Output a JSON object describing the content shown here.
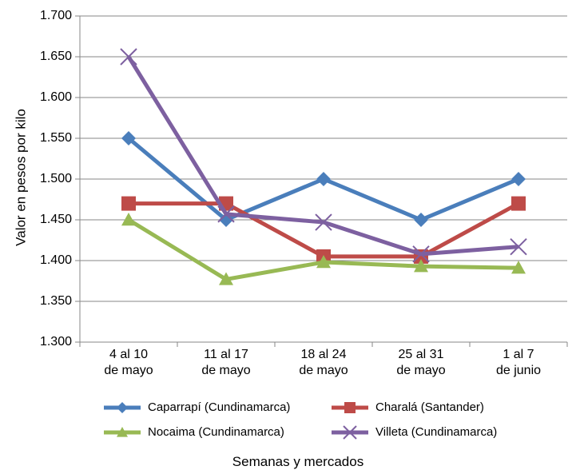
{
  "chart_data": {
    "type": "line",
    "title": "",
    "xlabel": "Semanas y mercados",
    "ylabel": "Valor en pesos por kilo",
    "ylim": [
      1300,
      1700
    ],
    "y_tick_step": 50,
    "y_tick_labels": [
      "1.300",
      "1.350",
      "1.400",
      "1.450",
      "1.500",
      "1.550",
      "1.600",
      "1.650",
      "1.700"
    ],
    "grid": true,
    "legend_position": "bottom",
    "categories": [
      [
        "4 al 10",
        "de mayo"
      ],
      [
        "11 al 17",
        "de mayo"
      ],
      [
        "18 al 24",
        "de mayo"
      ],
      [
        "25 al 31",
        "de mayo"
      ],
      [
        "1 al 7",
        "de junio"
      ]
    ],
    "series": [
      {
        "name": "Caparrapí (Cundinamarca)",
        "values": [
          1550,
          1450,
          1500,
          1450,
          1500
        ],
        "color": "#4a7ebb",
        "marker": "diamond"
      },
      {
        "name": "Charalá (Santander)",
        "values": [
          1470,
          1470,
          1405,
          1405,
          1470
        ],
        "color": "#be4b48",
        "marker": "square"
      },
      {
        "name": "Nocaima (Cundinamarca)",
        "values": [
          1450,
          1377,
          1398,
          1393,
          1391
        ],
        "color": "#98b954",
        "marker": "triangle"
      },
      {
        "name": "Villeta (Cundinamarca)",
        "values": [
          1650,
          1457,
          1447,
          1408,
          1417
        ],
        "color": "#7d60a0",
        "marker": "x"
      }
    ]
  }
}
